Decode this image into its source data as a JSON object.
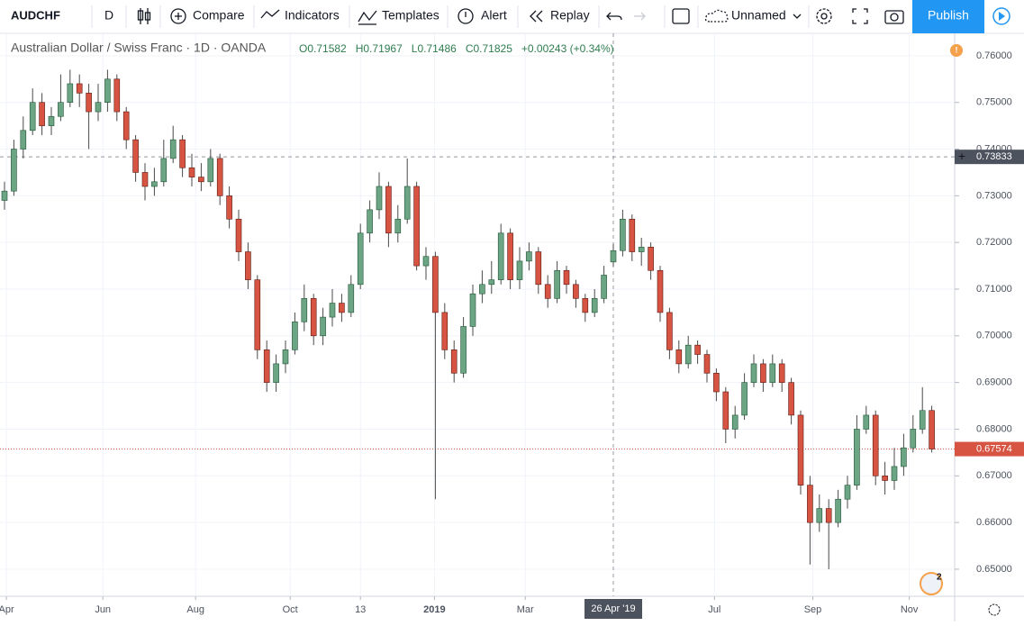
{
  "toolbar": {
    "symbol": "AUDCHF",
    "interval": "D",
    "compare": "Compare",
    "indicators": "Indicators",
    "templates": "Templates",
    "alert": "Alert",
    "replay": "Replay",
    "layout_name": "Unnamed",
    "publish": "Publish"
  },
  "chart_data": {
    "type": "candlestick",
    "title": "Australian Dollar / Swiss Franc · 1D · OANDA",
    "ohlc_labels": [
      "O0.71582",
      "H0.71967",
      "L0.71486",
      "C0.71825",
      "+0.00243 (+0.34%)"
    ],
    "badge": "2",
    "up_color": "#6ba583",
    "down_color": "#d75442",
    "open": [
      0.729,
      0.731,
      0.74,
      0.744,
      0.75,
      0.745,
      0.747,
      0.75,
      0.754,
      0.752,
      0.748,
      0.75,
      0.755,
      0.748,
      0.742,
      0.735,
      0.732,
      0.733,
      0.738,
      0.742,
      0.736,
      0.734,
      0.733,
      0.738,
      0.73,
      0.725,
      0.718,
      0.712,
      0.697,
      0.69,
      0.694,
      0.697,
      0.703,
      0.708,
      0.7,
      0.704,
      0.707,
      0.705,
      0.711,
      0.722,
      0.727,
      0.732,
      0.722,
      0.725,
      0.732,
      0.715,
      0.717,
      0.705,
      0.697,
      0.692,
      0.702,
      0.709,
      0.711,
      0.712,
      0.722,
      0.712,
      0.716,
      0.718,
      0.711,
      0.708,
      0.714,
      0.711,
      0.708,
      0.705,
      0.708,
      0.71582,
      0.71825,
      0.725,
      0.718,
      0.719,
      0.714,
      0.705,
      0.697,
      0.694,
      0.698,
      0.696,
      0.692,
      0.688,
      0.68,
      0.683,
      0.69,
      0.694,
      0.69,
      0.694,
      0.69,
      0.683,
      0.668,
      0.66,
      0.663,
      0.66,
      0.665,
      0.668,
      0.68,
      0.683,
      0.67,
      0.669,
      0.672,
      0.676,
      0.68,
      0.684
    ],
    "high": [
      0.733,
      0.742,
      0.747,
      0.753,
      0.752,
      0.749,
      0.756,
      0.757,
      0.756,
      0.754,
      0.754,
      0.757,
      0.756,
      0.749,
      0.743,
      0.737,
      0.736,
      0.742,
      0.745,
      0.743,
      0.739,
      0.737,
      0.74,
      0.739,
      0.732,
      0.727,
      0.72,
      0.713,
      0.699,
      0.696,
      0.699,
      0.705,
      0.711,
      0.709,
      0.706,
      0.71,
      0.709,
      0.713,
      0.724,
      0.729,
      0.735,
      0.733,
      0.728,
      0.738,
      0.733,
      0.719,
      0.718,
      0.707,
      0.699,
      0.704,
      0.711,
      0.714,
      0.716,
      0.724,
      0.723,
      0.719,
      0.72,
      0.719,
      0.713,
      0.716,
      0.715,
      0.712,
      0.709,
      0.71,
      0.715,
      0.71967,
      0.727,
      0.726,
      0.721,
      0.72,
      0.715,
      0.706,
      0.699,
      0.7,
      0.699,
      0.697,
      0.693,
      0.689,
      0.685,
      0.692,
      0.696,
      0.695,
      0.696,
      0.695,
      0.691,
      0.684,
      0.67,
      0.666,
      0.665,
      0.667,
      0.67,
      0.683,
      0.685,
      0.684,
      0.673,
      0.676,
      0.679,
      0.683,
      0.689,
      0.685
    ],
    "low": [
      0.727,
      0.73,
      0.738,
      0.743,
      0.743,
      0.743,
      0.746,
      0.749,
      0.749,
      0.74,
      0.746,
      0.748,
      0.746,
      0.74,
      0.733,
      0.729,
      0.73,
      0.732,
      0.737,
      0.734,
      0.732,
      0.731,
      0.732,
      0.728,
      0.723,
      0.716,
      0.71,
      0.695,
      0.688,
      0.688,
      0.692,
      0.696,
      0.701,
      0.698,
      0.698,
      0.702,
      0.703,
      0.704,
      0.71,
      0.72,
      0.725,
      0.719,
      0.72,
      0.724,
      0.714,
      0.712,
      0.665,
      0.695,
      0.69,
      0.691,
      0.7,
      0.707,
      0.709,
      0.711,
      0.71,
      0.71,
      0.714,
      0.709,
      0.706,
      0.707,
      0.709,
      0.706,
      0.703,
      0.704,
      0.707,
      0.71486,
      0.717,
      0.716,
      0.715,
      0.712,
      0.703,
      0.695,
      0.692,
      0.693,
      0.694,
      0.69,
      0.686,
      0.677,
      0.678,
      0.682,
      0.689,
      0.688,
      0.689,
      0.688,
      0.681,
      0.666,
      0.651,
      0.658,
      0.65,
      0.659,
      0.663,
      0.667,
      0.679,
      0.668,
      0.666,
      0.667,
      0.67,
      0.675,
      0.679,
      0.675
    ],
    "close": [
      0.731,
      0.74,
      0.744,
      0.75,
      0.745,
      0.747,
      0.75,
      0.754,
      0.752,
      0.748,
      0.75,
      0.755,
      0.748,
      0.742,
      0.735,
      0.732,
      0.733,
      0.738,
      0.742,
      0.736,
      0.734,
      0.733,
      0.738,
      0.73,
      0.725,
      0.718,
      0.712,
      0.697,
      0.69,
      0.694,
      0.697,
      0.703,
      0.708,
      0.7,
      0.704,
      0.707,
      0.705,
      0.711,
      0.722,
      0.727,
      0.732,
      0.722,
      0.725,
      0.732,
      0.715,
      0.717,
      0.705,
      0.697,
      0.692,
      0.702,
      0.709,
      0.711,
      0.712,
      0.722,
      0.712,
      0.716,
      0.718,
      0.711,
      0.708,
      0.714,
      0.711,
      0.708,
      0.705,
      0.708,
      0.713,
      0.71825,
      0.725,
      0.718,
      0.719,
      0.714,
      0.705,
      0.697,
      0.694,
      0.698,
      0.696,
      0.692,
      0.688,
      0.68,
      0.683,
      0.69,
      0.694,
      0.69,
      0.694,
      0.69,
      0.683,
      0.668,
      0.66,
      0.663,
      0.66,
      0.665,
      0.668,
      0.68,
      0.683,
      0.67,
      0.669,
      0.672,
      0.676,
      0.68,
      0.684,
      0.67574
    ],
    "ylim": [
      0.6442,
      0.7648
    ],
    "yticks": [
      {
        "value": 0.65,
        "label": "0.65000"
      },
      {
        "value": 0.66,
        "label": "0.66000"
      },
      {
        "value": 0.67,
        "label": "0.67000"
      },
      {
        "value": 0.68,
        "label": "0.68000"
      },
      {
        "value": 0.69,
        "label": "0.69000"
      },
      {
        "value": 0.7,
        "label": "0.70000"
      },
      {
        "value": 0.71,
        "label": "0.71000"
      },
      {
        "value": 0.72,
        "label": "0.72000"
      },
      {
        "value": 0.73,
        "label": "0.73000"
      },
      {
        "value": 0.74,
        "label": "0.74000"
      },
      {
        "value": 0.75,
        "label": "0.75000"
      },
      {
        "value": 0.76,
        "label": "0.76000"
      }
    ],
    "xticks": [
      {
        "value": 0.2,
        "label": "Apr"
      },
      {
        "value": 10.5,
        "label": "Jun"
      },
      {
        "value": 20.4,
        "label": "Aug"
      },
      {
        "value": 30.5,
        "label": "Oct"
      },
      {
        "value": 38.0,
        "label": "13"
      },
      {
        "value": 45.9,
        "label": "2019"
      },
      {
        "value": 55.6,
        "label": "Mar"
      },
      {
        "value": 75.8,
        "label": "Jul"
      },
      {
        "value": 86.3,
        "label": "Sep"
      },
      {
        "value": 96.6,
        "label": "Nov"
      }
    ],
    "crosshair": {
      "x": {
        "value": 65,
        "label": "26 Apr '19"
      },
      "y": {
        "value": 0.73833,
        "label": "0.73833"
      }
    },
    "last_price": {
      "value": 0.67574,
      "label": "0.67574"
    },
    "grid": true
  }
}
